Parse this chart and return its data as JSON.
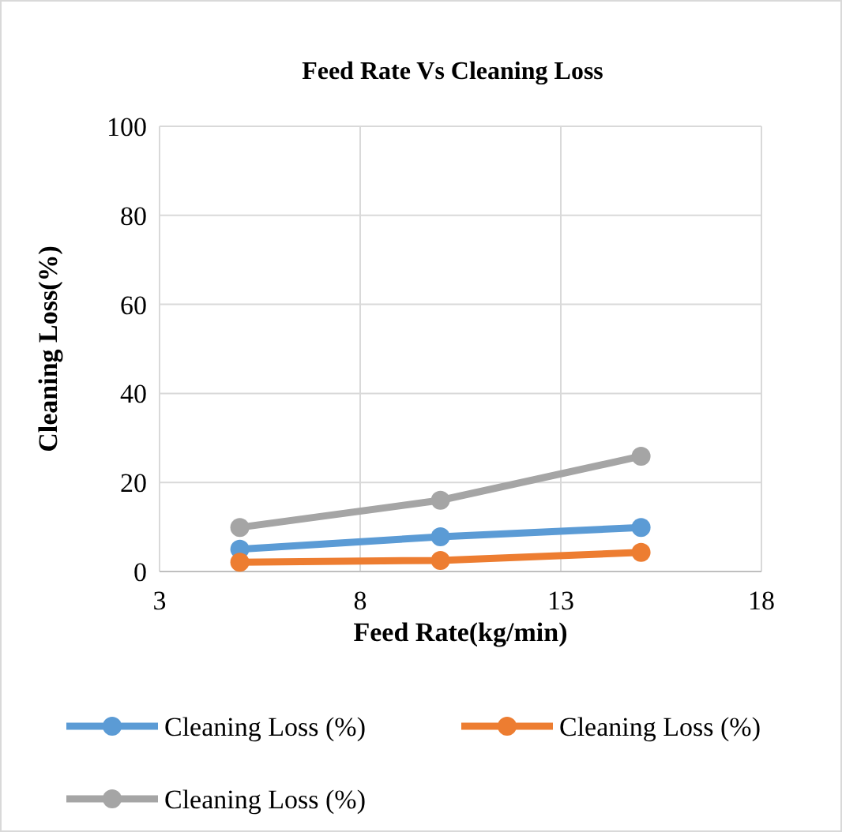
{
  "chart_data": {
    "type": "line",
    "title": "Feed Rate Vs Cleaning Loss",
    "xlabel": "Feed Rate(kg/min)",
    "ylabel": "Cleaning Loss(%)",
    "x": [
      5,
      10,
      15
    ],
    "xlim": [
      3,
      18
    ],
    "xticks": [
      3,
      8,
      13,
      18
    ],
    "ylim": [
      0,
      100
    ],
    "yticks": [
      0,
      20,
      40,
      60,
      80,
      100
    ],
    "grid": true,
    "legend": "bottom",
    "marker": "circle",
    "line_style": "solid",
    "series": [
      {
        "name": "Cleaning Loss (%)",
        "color": "#5b9bd5",
        "values": [
          5.0,
          7.8,
          9.9
        ]
      },
      {
        "name": "Cleaning Loss (%)",
        "color": "#ed7d31",
        "values": [
          2.1,
          2.5,
          4.3
        ]
      },
      {
        "name": "Cleaning Loss (%)",
        "color": "#a5a5a5",
        "values": [
          9.9,
          16,
          25.9
        ]
      }
    ]
  }
}
